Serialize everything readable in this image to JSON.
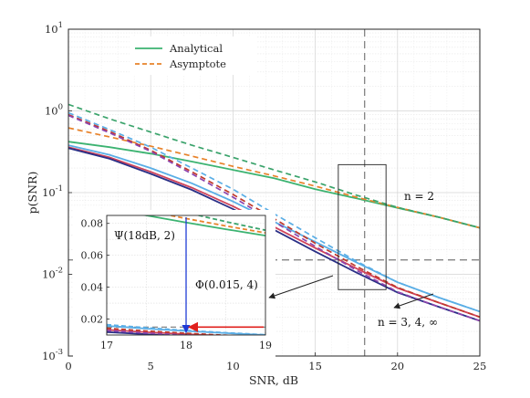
{
  "chart_data": {
    "type": "line",
    "xlabel": "SNR, dB",
    "ylabel": "p(SNR)",
    "xlim": [
      0,
      25
    ],
    "ylim": [
      0.001,
      10
    ],
    "yscale": "log",
    "grid": true,
    "legend_position": "top-left",
    "x_ticks": [
      "0",
      "5",
      "10",
      "15",
      "20",
      "25"
    ],
    "y_ticks": [
      {
        "base": "10",
        "exp": "1",
        "value": 10
      },
      {
        "base": "10",
        "exp": "0",
        "value": 1
      },
      {
        "base": "10",
        "exp": "-1",
        "value": 0.1
      },
      {
        "base": "10",
        "exp": "-2",
        "value": 0.01
      },
      {
        "base": "10",
        "exp": "-3",
        "value": 0.001
      }
    ],
    "legend": [
      {
        "label": "Analytical",
        "style": "solid",
        "color": "#3cb371"
      },
      {
        "label": "Asymptote",
        "style": "dashed",
        "color": "#e8822a"
      }
    ],
    "x": [
      0,
      2.5,
      5,
      7.5,
      10,
      12.5,
      15,
      17.5,
      20,
      22.5,
      25
    ],
    "series": [
      {
        "n": "2",
        "kind": "analytical",
        "color": "#3cb371",
        "dash": false,
        "values": [
          0.42,
          0.36,
          0.3,
          0.24,
          0.19,
          0.15,
          0.11,
          0.085,
          0.065,
          0.05,
          0.037
        ]
      },
      {
        "n": "2",
        "kind": "asymptote",
        "color": "#e8822a",
        "dash": true,
        "values": [
          0.62,
          0.48,
          0.37,
          0.28,
          0.21,
          0.16,
          0.12,
          0.088,
          0.066,
          0.05,
          0.037
        ]
      },
      {
        "n": "2",
        "kind": "asymptote",
        "color": "#3aa36b",
        "dash": true,
        "values": [
          1.2,
          0.8,
          0.55,
          0.38,
          0.27,
          0.19,
          0.135,
          0.093,
          0.066,
          0.05,
          0.037
        ]
      },
      {
        "n": "3",
        "kind": "analytical",
        "color": "#5aaee6",
        "dash": false,
        "values": [
          0.38,
          0.29,
          0.2,
          0.13,
          0.078,
          0.044,
          0.025,
          0.014,
          0.008,
          0.0052,
          0.0035
        ]
      },
      {
        "n": "3",
        "kind": "asymptote",
        "color": "#5aaee6",
        "dash": true,
        "values": [
          0.95,
          0.59,
          0.36,
          0.2,
          0.11,
          0.055,
          0.028,
          0.0145,
          0.008,
          0.0052,
          0.0035
        ]
      },
      {
        "n": "4",
        "kind": "analytical",
        "color": "#d0435a",
        "dash": false,
        "values": [
          0.36,
          0.27,
          0.18,
          0.115,
          0.068,
          0.038,
          0.021,
          0.0118,
          0.0068,
          0.0045,
          0.003
        ]
      },
      {
        "n": "4",
        "kind": "asymptote",
        "color": "#c0392b",
        "dash": true,
        "values": [
          0.9,
          0.56,
          0.33,
          0.18,
          0.095,
          0.048,
          0.024,
          0.0125,
          0.0069,
          0.0045,
          0.003
        ]
      },
      {
        "n": "∞",
        "kind": "analytical",
        "color": "#2a2f86",
        "dash": false,
        "values": [
          0.35,
          0.26,
          0.17,
          0.108,
          0.063,
          0.035,
          0.019,
          0.0105,
          0.006,
          0.004,
          0.0027
        ]
      },
      {
        "n": "∞",
        "kind": "asymptote",
        "color": "#8e44ad",
        "dash": true,
        "values": [
          0.88,
          0.54,
          0.32,
          0.17,
          0.088,
          0.044,
          0.022,
          0.0112,
          0.0061,
          0.004,
          0.0027
        ]
      }
    ],
    "annotations": {
      "n2": "n = 2",
      "n34inf": "n = 3, 4, ∞",
      "psi": "Ψ(18dB, 2)",
      "phi": "Φ(0.015, 4)"
    },
    "reference_lines": {
      "vertical_x_db": 18,
      "horizontal_y": 0.015
    },
    "zoom_box": {
      "x": [
        16.4,
        19.3
      ],
      "y": [
        0.0065,
        0.22
      ]
    },
    "inset": {
      "xlim": [
        17,
        19
      ],
      "ylim": [
        0.01,
        0.085
      ],
      "x_ticks": [
        "17",
        "18",
        "19"
      ],
      "y_ticks": [
        {
          "label": "0.08",
          "value": 0.08
        },
        {
          "label": "0.06",
          "value": 0.06
        },
        {
          "label": "0.04",
          "value": 0.04
        },
        {
          "label": "0.02",
          "value": 0.02
        }
      ],
      "psi_value": 0.0105
    }
  }
}
